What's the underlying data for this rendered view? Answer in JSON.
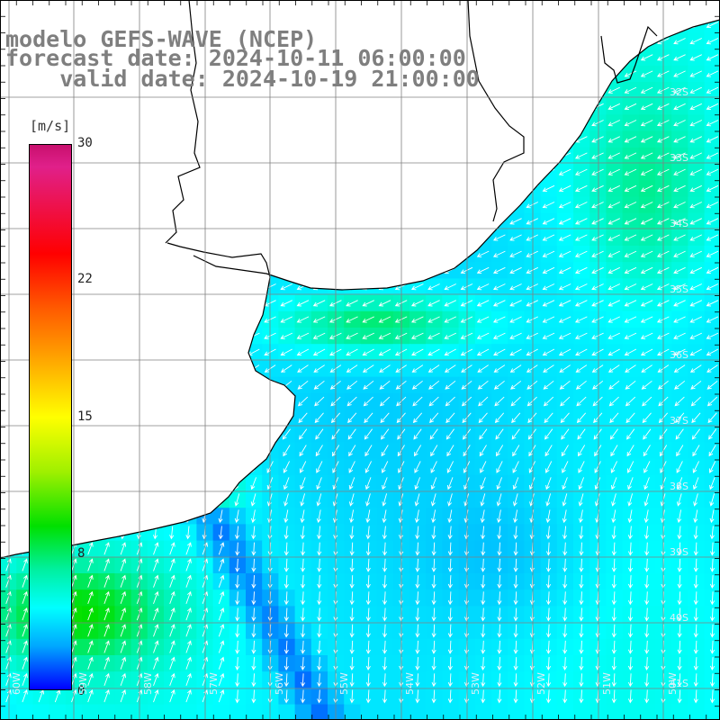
{
  "title": {
    "line1": "modelo GEFS-WAVE (NCEP)",
    "line2": "forecast date: 2024-10-11 06:00:00",
    "line3": "valid date: 2024-10-19 21:00:00"
  },
  "colorbar": {
    "unit": "[m/s]",
    "ticks": [
      "30",
      "22",
      "15",
      "8",
      "0"
    ],
    "tick_values": [
      30,
      22,
      15,
      8,
      0
    ],
    "max": 30,
    "min": 0
  },
  "map": {
    "lat_labels": [
      "32S",
      "33S",
      "34S",
      "35S",
      "36S",
      "37S",
      "38S",
      "39S",
      "40S",
      "41S"
    ],
    "lon_labels": [
      "60W",
      "59W",
      "58W",
      "57W",
      "56W",
      "55W",
      "54W",
      "53W",
      "52W",
      "51W",
      "50W"
    ],
    "colors": {
      "land": "#ffffff",
      "coast": "#000000",
      "grid": "#808080",
      "sea_dominant": "#00d8ff",
      "strong_wind": "#00e040",
      "weak_wind": "#0030ff",
      "arrow": "#ffffff"
    }
  }
}
